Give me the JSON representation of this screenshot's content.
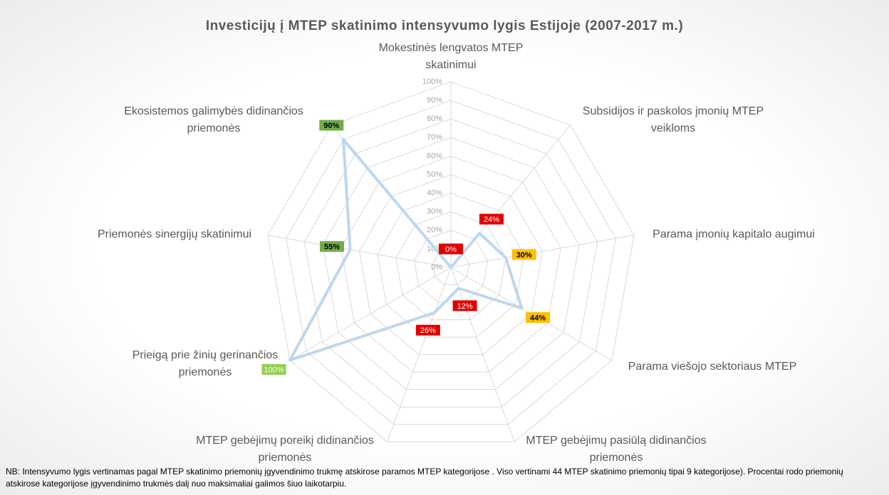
{
  "chart_data": {
    "type": "radar",
    "title": "Investicijų į MTEP skatinimo intensyvumo lygis Estijoje (2007-2017 m.)",
    "categories": [
      "Mokestinės lengvatos MTEP skatinimui",
      "Subsidijos ir paskolos įmonių MTEP veikloms",
      "Parama įmonių kapitalo augimui",
      "Parama viešojo sektoriaus MTEP",
      "MTEP gebėjimų pasiūlą didinančios priemonės",
      "MTEP gebėjimų poreikį didinančios priemonės",
      "Prieigą prie žinių gerinančios priemonės",
      "Priemonės sinergijų skatinimui",
      "Ekosistemos galimybės didinančios priemonės"
    ],
    "values": [
      0,
      24,
      30,
      44,
      12,
      26,
      100,
      55,
      90
    ],
    "value_labels": [
      "0%",
      "24%",
      "30%",
      "44%",
      "12%",
      "26%",
      "100%",
      "55%",
      "90%"
    ],
    "label_colors": [
      "#e00000",
      "#e00000",
      "#ffc000",
      "#ffc000",
      "#e00000",
      "#e00000",
      "#92d050",
      "#70ad47",
      "#70ad47"
    ],
    "color": "#bdd7ee",
    "ylim": [
      0,
      100
    ],
    "yticks": [
      {
        "value": 0,
        "label": "0%"
      },
      {
        "value": 10,
        "label": "10%"
      },
      {
        "value": 20,
        "label": "20%"
      },
      {
        "value": 30,
        "label": "30%"
      },
      {
        "value": 40,
        "label": "40%"
      },
      {
        "value": 50,
        "label": "50%"
      },
      {
        "value": 60,
        "label": "60%"
      },
      {
        "value": 70,
        "label": "70%"
      },
      {
        "value": 80,
        "label": "80%"
      },
      {
        "value": 90,
        "label": "90%"
      },
      {
        "value": 100,
        "label": "100%"
      }
    ],
    "grid": true,
    "note": "NB: Intensyvumo lygis vertinamas pagal MTEP skatinimo priemonių įgyvendinimo trukmę atskirose paramos MTEP kategorijose . Viso vertinami 44 MTEP skatinimo priemonių tipai 9 kategorijose). Procentai rodo priemonių  atskirose kategorijose įgyvendinimo trukmės dalį nuo  maksimaliai galimos šiuo laikotarpiu."
  }
}
